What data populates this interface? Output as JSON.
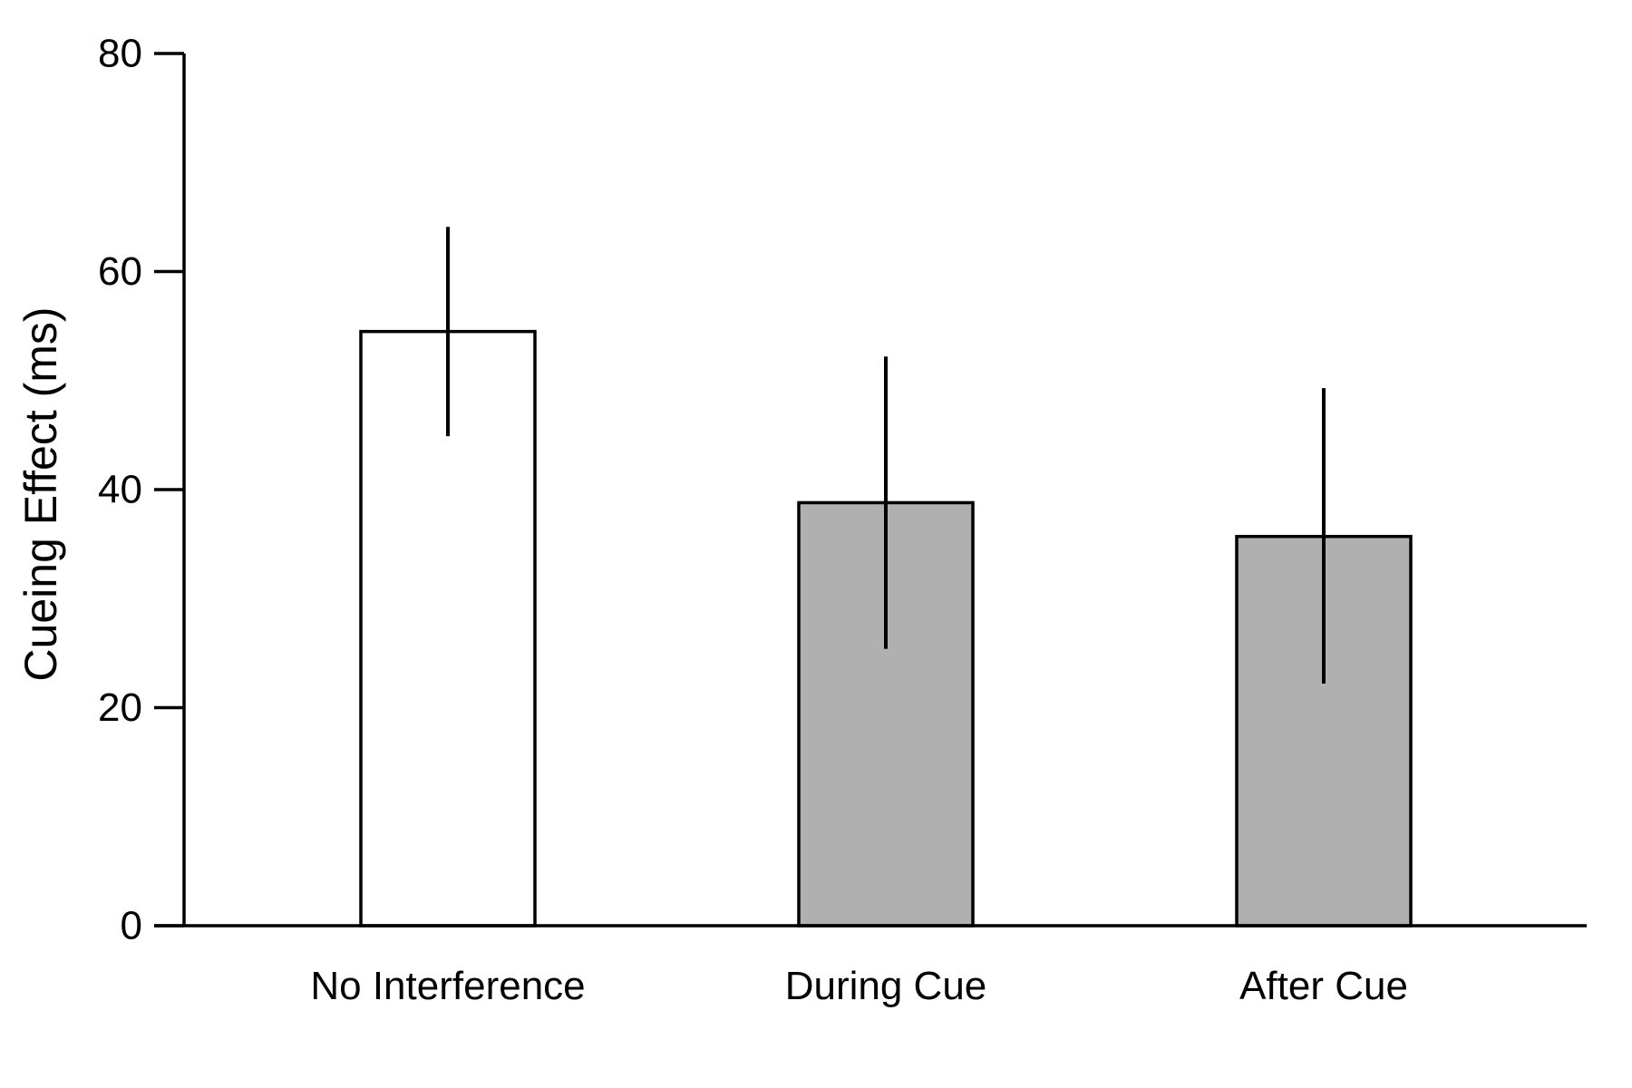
{
  "chart_data": {
    "type": "bar",
    "title": "",
    "xlabel": "",
    "ylabel": "Cueing Effect (ms)",
    "ylim": [
      0,
      80
    ],
    "yticks": [
      0,
      20,
      40,
      60,
      80
    ],
    "grid": false,
    "legend": "none",
    "categories": [
      "No Interference",
      "During Cue",
      "After Cue"
    ],
    "values": [
      54.5,
      38.8,
      35.7
    ],
    "error_low": [
      44.9,
      25.4,
      22.2
    ],
    "error_high": [
      64.1,
      52.2,
      49.3
    ],
    "bar_colors": [
      "#ffffff",
      "#b0b0b0",
      "#b0b0b0"
    ],
    "edge_color": "#000000"
  }
}
